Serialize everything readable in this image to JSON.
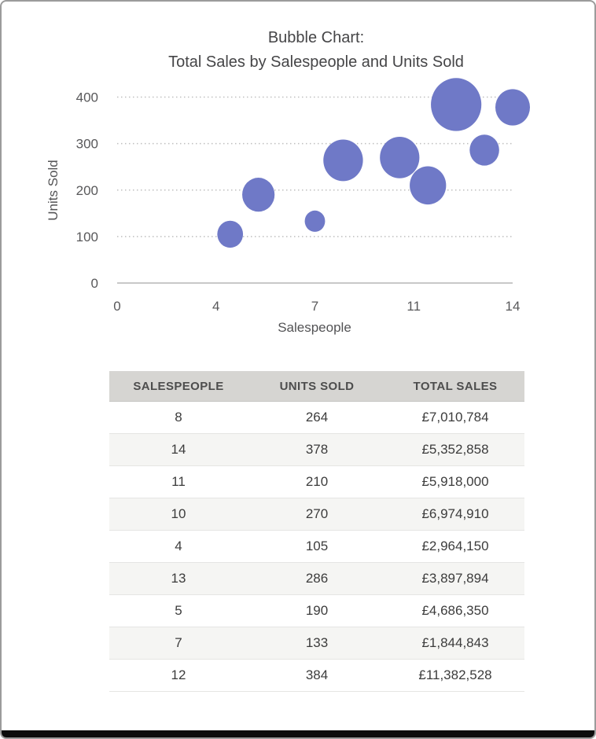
{
  "frame": {
    "background": "#ffffff",
    "border_color": "#9b9b9b",
    "bottom_bar_color": "#0c0c0c"
  },
  "chart_data": {
    "type": "scatter",
    "subtype": "bubble",
    "title_line1": "Bubble Chart:",
    "title_line2": "Total Sales by Salespeople and Units Sold",
    "xlabel": "Salespeople",
    "ylabel": "Units Sold",
    "xlim": [
      0,
      14
    ],
    "ylim": [
      0,
      400
    ],
    "x_tick_labels": [
      "0",
      "4",
      "7",
      "11",
      "14"
    ],
    "y_tick_labels": [
      "0",
      "100",
      "200",
      "300",
      "400"
    ],
    "grid": "horizontal-dotted",
    "legend": "none",
    "bubble_color": "#6f79c7",
    "gridline_color": "#bfbfbf",
    "baseline_color": "#c8c8c8",
    "size_meaning": "total_sales",
    "points": [
      {
        "salespeople": 8,
        "units_sold": 264,
        "total_sales": 7010784
      },
      {
        "salespeople": 14,
        "units_sold": 378,
        "total_sales": 5352858
      },
      {
        "salespeople": 11,
        "units_sold": 210,
        "total_sales": 5918000
      },
      {
        "salespeople": 10,
        "units_sold": 270,
        "total_sales": 6974910
      },
      {
        "salespeople": 4,
        "units_sold": 105,
        "total_sales": 2964150
      },
      {
        "salespeople": 13,
        "units_sold": 286,
        "total_sales": 3897894
      },
      {
        "salespeople": 5,
        "units_sold": 190,
        "total_sales": 4686350
      },
      {
        "salespeople": 7,
        "units_sold": 133,
        "total_sales": 1844843
      },
      {
        "salespeople": 12,
        "units_sold": 384,
        "total_sales": 11382528
      }
    ]
  },
  "table": {
    "headers": [
      "SALESPEOPLE",
      "UNITS SOLD",
      "TOTAL SALES"
    ],
    "rows": [
      [
        "8",
        "264",
        "£7,010,784"
      ],
      [
        "14",
        "378",
        "£5,352,858"
      ],
      [
        "11",
        "210",
        "£5,918,000"
      ],
      [
        "10",
        "270",
        "£6,974,910"
      ],
      [
        "4",
        "105",
        "£2,964,150"
      ],
      [
        "13",
        "286",
        "£3,897,894"
      ],
      [
        "5",
        "190",
        "£4,686,350"
      ],
      [
        "7",
        "133",
        "£1,844,843"
      ],
      [
        "12",
        "384",
        "£11,382,528"
      ]
    ]
  }
}
